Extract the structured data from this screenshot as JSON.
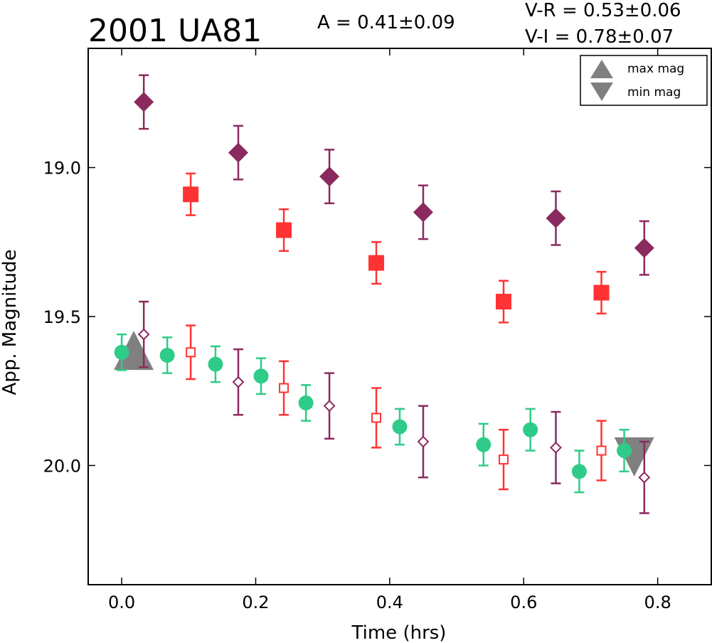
{
  "chart_data": {
    "type": "scatter",
    "title": "2001 UA81",
    "annotations": {
      "amplitude": "A  = 0.41±0.09",
      "v_minus_r": "V-R = 0.53±0.06",
      "v_minus_i": "V-I  = 0.78±0.07"
    },
    "xlabel": "Time (hrs)",
    "ylabel": "App. Magnitude",
    "xlim": [
      -0.05,
      0.88
    ],
    "ylim": [
      20.4,
      18.6
    ],
    "y_inverted": true,
    "grid": false,
    "legend_position": "top-right",
    "xticks": [
      "0.0",
      "0.2",
      "0.4",
      "0.6",
      "0.8"
    ],
    "yticks": [
      "19.0",
      "19.5",
      "20.0"
    ],
    "xtick_values": [
      0.0,
      0.2,
      0.4,
      0.6,
      0.8
    ],
    "ytick_values": [
      19.0,
      19.5,
      20.0
    ],
    "series": [
      {
        "marker": "filled-diamond",
        "color": "#8b2a5f",
        "points": [
          {
            "x": 0.033,
            "y": 18.78,
            "err": 0.09
          },
          {
            "x": 0.174,
            "y": 18.95,
            "err": 0.09
          },
          {
            "x": 0.31,
            "y": 19.03,
            "err": 0.09
          },
          {
            "x": 0.45,
            "y": 19.15,
            "err": 0.09
          },
          {
            "x": 0.648,
            "y": 19.17,
            "err": 0.09
          },
          {
            "x": 0.78,
            "y": 19.27,
            "err": 0.09
          }
        ]
      },
      {
        "marker": "filled-square",
        "color": "#ff3333",
        "points": [
          {
            "x": 0.103,
            "y": 19.09,
            "err": 0.07
          },
          {
            "x": 0.242,
            "y": 19.21,
            "err": 0.07
          },
          {
            "x": 0.38,
            "y": 19.32,
            "err": 0.07
          },
          {
            "x": 0.57,
            "y": 19.45,
            "err": 0.07
          },
          {
            "x": 0.716,
            "y": 19.42,
            "err": 0.07
          }
        ]
      },
      {
        "marker": "filled-circle",
        "color": "#2ecc88",
        "points": [
          {
            "x": 0.0,
            "y": 19.62,
            "err": 0.06
          },
          {
            "x": 0.068,
            "y": 19.63,
            "err": 0.06
          },
          {
            "x": 0.14,
            "y": 19.66,
            "err": 0.06
          },
          {
            "x": 0.208,
            "y": 19.7,
            "err": 0.06
          },
          {
            "x": 0.275,
            "y": 19.79,
            "err": 0.06
          },
          {
            "x": 0.415,
            "y": 19.87,
            "err": 0.06
          },
          {
            "x": 0.54,
            "y": 19.93,
            "err": 0.07
          },
          {
            "x": 0.61,
            "y": 19.88,
            "err": 0.07
          },
          {
            "x": 0.683,
            "y": 20.02,
            "err": 0.07
          },
          {
            "x": 0.75,
            "y": 19.95,
            "err": 0.07
          }
        ]
      },
      {
        "marker": "open-diamond",
        "color": "#8b2a5f",
        "points": [
          {
            "x": 0.033,
            "y": 19.56,
            "err": 0.11
          },
          {
            "x": 0.174,
            "y": 19.72,
            "err": 0.11
          },
          {
            "x": 0.31,
            "y": 19.8,
            "err": 0.11
          },
          {
            "x": 0.45,
            "y": 19.92,
            "err": 0.12
          },
          {
            "x": 0.648,
            "y": 19.94,
            "err": 0.12
          },
          {
            "x": 0.78,
            "y": 20.04,
            "err": 0.12
          }
        ]
      },
      {
        "marker": "open-square",
        "color": "#ff3333",
        "points": [
          {
            "x": 0.103,
            "y": 19.62,
            "err": 0.09
          },
          {
            "x": 0.242,
            "y": 19.74,
            "err": 0.09
          },
          {
            "x": 0.38,
            "y": 19.84,
            "err": 0.1
          },
          {
            "x": 0.57,
            "y": 19.98,
            "err": 0.1
          },
          {
            "x": 0.716,
            "y": 19.95,
            "err": 0.1
          }
        ]
      }
    ],
    "markers_extra": [
      {
        "label": "max mag",
        "marker": "triangle-up",
        "color": "#808080",
        "x": 0.018,
        "y": 19.615
      },
      {
        "label": "min mag",
        "marker": "triangle-down",
        "color": "#808080",
        "x": 0.765,
        "y": 19.97
      }
    ],
    "legend": [
      {
        "label": "max mag",
        "marker": "triangle-up"
      },
      {
        "label": "min mag",
        "marker": "triangle-down"
      }
    ]
  }
}
